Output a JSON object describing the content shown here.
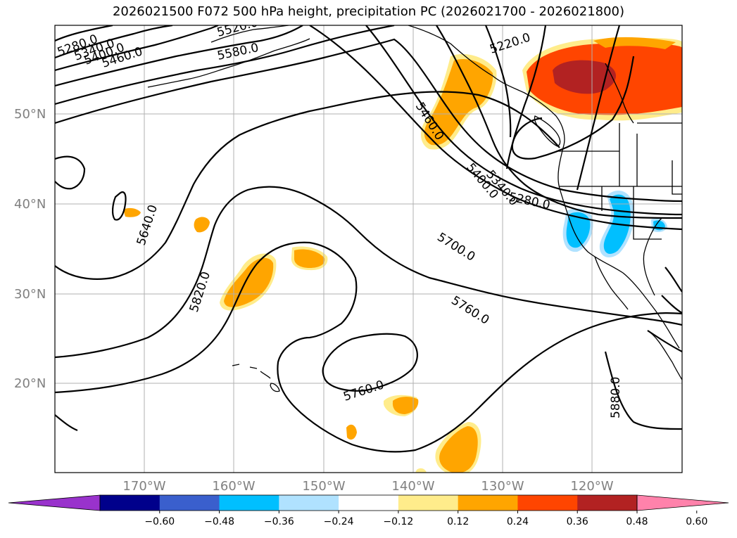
{
  "title": "2026021500 F072 500 hPa height, precipitation PC (2026021700 - 2026021800)",
  "lat_labels": [
    "50°N",
    "40°N",
    "30°N",
    "20°N"
  ],
  "lon_labels": [
    "170°W",
    "160°W",
    "150°W",
    "140°W",
    "130°W",
    "120°W"
  ],
  "colorbar": {
    "colors": [
      "#9932cc",
      "#00008b",
      "#3a5fcd",
      "#00bfff",
      "#b0e2ff",
      "#ffffff",
      "#ffec8b",
      "#ffa500",
      "#ff4500",
      "#b22222",
      "#ff82ab"
    ],
    "tick_labels": [
      "−0.60",
      "−0.48",
      "−0.36",
      "−0.24",
      "−0.12",
      "0.12",
      "0.24",
      "0.36",
      "0.48",
      "0.60"
    ]
  },
  "contour_labels": [
    "5280.0",
    "5340.0",
    "5400.0",
    "5460.0",
    "5520.0",
    "5580.0",
    "5220.0",
    "5460.0",
    "5400.0",
    "5340.0",
    "5280.0",
    "5640.0",
    "5700.0",
    "5760.0",
    "5820.0",
    "5760.0",
    "5880.0"
  ]
}
